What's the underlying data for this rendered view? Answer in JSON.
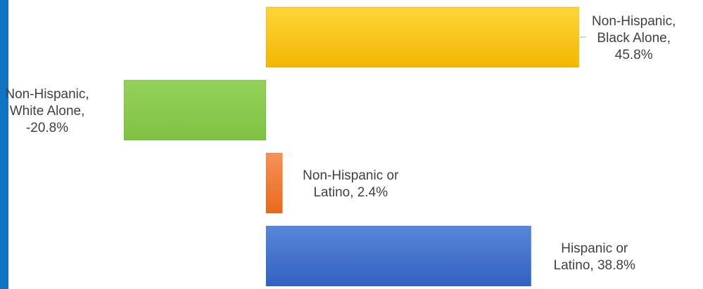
{
  "chart_data": {
    "type": "bar",
    "orientation": "horizontal",
    "title": "",
    "xlabel": "",
    "ylabel": "",
    "categories": [
      "Non-Hispanic, Black Alone",
      "Non-Hispanic, White Alone",
      "Non-Hispanic or Latino",
      "Hispanic or Latino"
    ],
    "values": [
      45.8,
      -20.8,
      2.4,
      38.8
    ],
    "labels": [
      [
        "Non-Hispanic,",
        "Black Alone,",
        "45.8%"
      ],
      [
        "Non-Hispanic,",
        "White Alone,",
        "-20.8%"
      ],
      [
        "Non-Hispanic or",
        "Latino, 2.4%"
      ],
      [
        "Hispanic or",
        "Latino, 38.8%"
      ]
    ],
    "colors": [
      [
        "#ffd43a",
        "#f2b700"
      ],
      [
        "#93d25a",
        "#7fc243"
      ],
      [
        "#f59258",
        "#e8691e"
      ],
      [
        "#5886d8",
        "#3262c2"
      ]
    ],
    "unit": "%",
    "grid": false,
    "legend": "none"
  }
}
